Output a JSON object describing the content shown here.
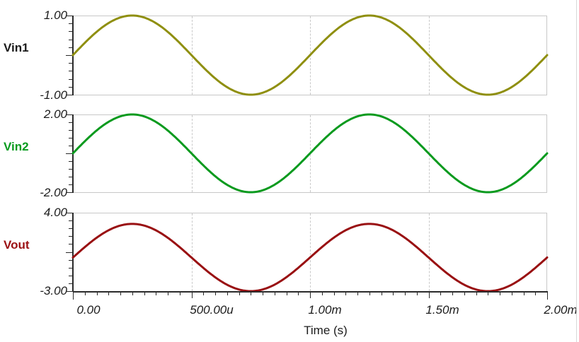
{
  "plot": {
    "background_color": "#ffffff",
    "axis_color": "#2a2a2a",
    "grid_color": "#c8c8c8",
    "x_axis": {
      "title": "Time (s)",
      "tick_labels": [
        "0.00",
        "500.00u",
        "1.00m",
        "1.50m",
        "2.00m"
      ],
      "minor_ticks_per_major": 10
    },
    "panels": [
      {
        "curve_label": "Vin1",
        "curve_label_color": "#1a1a1a",
        "curve_color": "#8f8f10",
        "y_top_label": "1.00",
        "y_bottom_label": "-1.00"
      },
      {
        "curve_label": "Vin2",
        "curve_label_color": "#089b1e",
        "curve_color": "#0a9a1e",
        "y_top_label": "2.00",
        "y_bottom_label": "-2.00"
      },
      {
        "curve_label": "Vout",
        "curve_label_color": "#9b1013",
        "curve_color": "#991012",
        "y_top_label": "4.00",
        "y_bottom_label": "-3.00"
      }
    ]
  },
  "chart_data": {
    "type": "line",
    "layout": "three stacked time-domain panels sharing one x axis, dashed vertical gridlines at 500u/1.00m/1.50m, solid gray lines at each panel's y max/min",
    "xlabel": "Time (s)",
    "x_range_s": [
      0,
      0.002
    ],
    "x_ticks_s": [
      0,
      0.0005,
      0.001,
      0.0015,
      0.002
    ],
    "x_tick_labels": [
      "0.00",
      "500.00u",
      "1.00m",
      "1.50m",
      "2.00m"
    ],
    "legend": "none",
    "panels": [
      {
        "name": "Vin1",
        "ylim": [
          -1,
          1
        ],
        "y_tick_labels": [
          "1.00",
          "-1.00"
        ],
        "series": {
          "name": "Vin1",
          "color": "#8f8f10",
          "waveform": "sine",
          "amplitude_v": 1.0,
          "offset_v": 0,
          "frequency_hz": 1000,
          "phase_deg": 0,
          "sample_t_ms": [
            0,
            0.125,
            0.25,
            0.375,
            0.5,
            0.625,
            0.75,
            0.875,
            1,
            1.125,
            1.25,
            1.375,
            1.5,
            1.625,
            1.75,
            1.875,
            2
          ],
          "sample_v": [
            0,
            0.71,
            1,
            0.71,
            0,
            -0.71,
            -1,
            -0.71,
            0,
            0.71,
            1,
            0.71,
            0,
            -0.71,
            -1,
            -0.71,
            0
          ]
        }
      },
      {
        "name": "Vin2",
        "ylim": [
          -2,
          2
        ],
        "y_tick_labels": [
          "2.00",
          "-2.00"
        ],
        "series": {
          "name": "Vin2",
          "color": "#0a9a1e",
          "waveform": "sine",
          "amplitude_v": 2.0,
          "offset_v": 0,
          "frequency_hz": 1000,
          "phase_deg": 0,
          "sample_t_ms": [
            0,
            0.125,
            0.25,
            0.375,
            0.5,
            0.625,
            0.75,
            0.875,
            1,
            1.125,
            1.25,
            1.375,
            1.5,
            1.625,
            1.75,
            1.875,
            2
          ],
          "sample_v": [
            0,
            1.41,
            2,
            1.41,
            0,
            -1.41,
            -2,
            -1.41,
            0,
            1.41,
            2,
            1.41,
            0,
            -1.41,
            -2,
            -1.41,
            0
          ]
        }
      },
      {
        "name": "Vout",
        "ylim": [
          -3,
          4
        ],
        "y_tick_labels": [
          "4.00",
          "-3.00"
        ],
        "series": {
          "name": "Vout",
          "color": "#991012",
          "waveform": "sine",
          "amplitude_v": 3.0,
          "offset_v": 0,
          "frequency_hz": 1000,
          "phase_deg": 0,
          "sample_t_ms": [
            0,
            0.125,
            0.25,
            0.375,
            0.5,
            0.625,
            0.75,
            0.875,
            1,
            1.125,
            1.25,
            1.375,
            1.5,
            1.625,
            1.75,
            1.875,
            2
          ],
          "sample_v": [
            0,
            2.12,
            3,
            2.12,
            0,
            -2.12,
            -3,
            -2.12,
            0,
            2.12,
            3,
            2.12,
            0,
            -2.12,
            -3,
            -2.12,
            0
          ]
        }
      }
    ]
  }
}
